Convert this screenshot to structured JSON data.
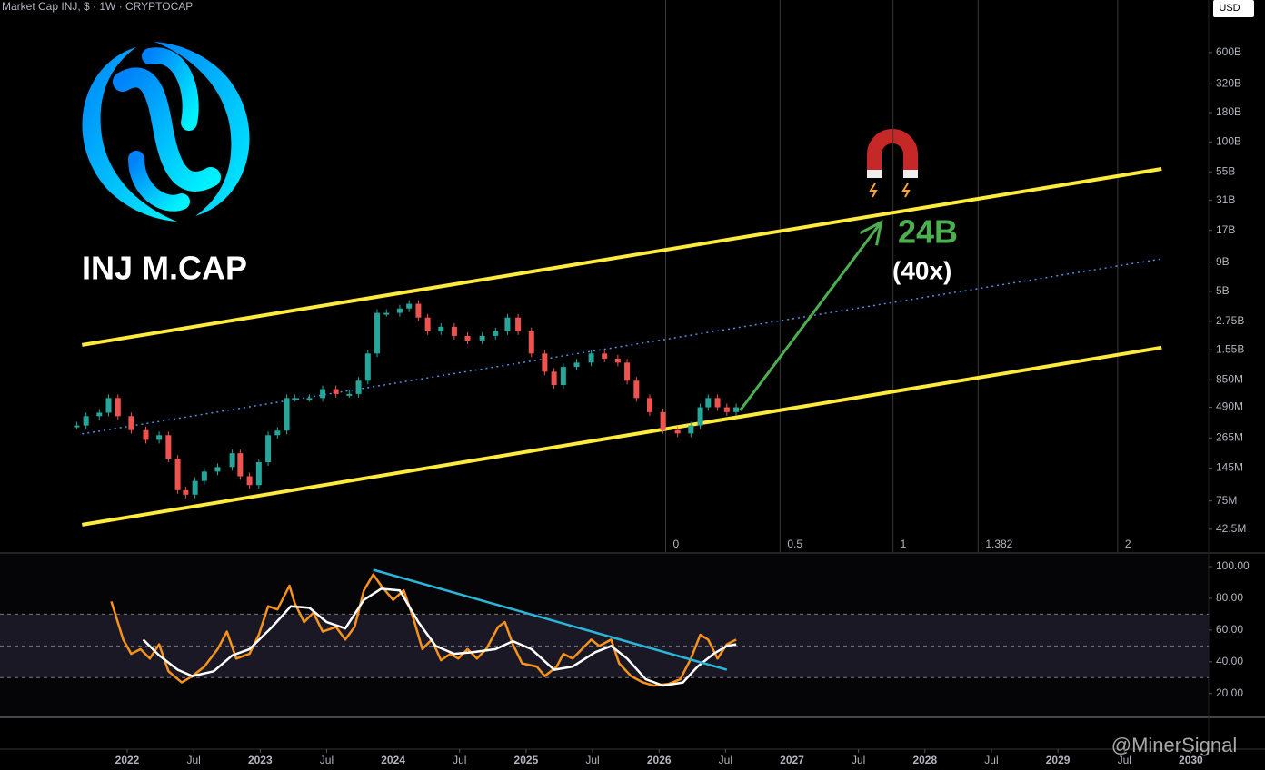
{
  "header": {
    "title": "Market Cap INJ, $ · 1W · CRYPTOCAP",
    "currency": "USD"
  },
  "watermark": "@MinerSignal",
  "chart_data": [
    {
      "type": "candlestick",
      "title": "INJ M.CAP",
      "log_scale": true,
      "colors": {
        "up": "#26a69a",
        "down": "#ef5350"
      },
      "xlim": [
        2021.043,
        2030.134
      ],
      "ylim": [
        26900000,
        1720000000000
      ],
      "yticks": [
        {
          "value": 600000000000,
          "label": "600B"
        },
        {
          "value": 320000000000,
          "label": "320B"
        },
        {
          "value": 180000000000,
          "label": "180B"
        },
        {
          "value": 100000000000,
          "label": "100B"
        },
        {
          "value": 55000000000,
          "label": "55B"
        },
        {
          "value": 31000000000,
          "label": "31B"
        },
        {
          "value": 17000000000,
          "label": "17B"
        },
        {
          "value": 9000000000,
          "label": "9B"
        },
        {
          "value": 5000000000,
          "label": "5B"
        },
        {
          "value": 2750000000,
          "label": "2.75B"
        },
        {
          "value": 1550000000,
          "label": "1.55B"
        },
        {
          "value": 850000000,
          "label": "850M"
        },
        {
          "value": 490000000,
          "label": "490M"
        },
        {
          "value": 265000000,
          "label": "265M"
        },
        {
          "value": 145000000,
          "label": "145M"
        },
        {
          "value": 75000000,
          "label": "75M"
        },
        {
          "value": 42500000,
          "label": "42.5M"
        }
      ],
      "x": [
        2021.62,
        2021.69,
        2021.79,
        2021.86,
        2021.93,
        2022.03,
        2022.14,
        2022.24,
        2022.31,
        2022.38,
        2022.44,
        2022.51,
        2022.58,
        2022.68,
        2022.79,
        2022.85,
        2022.92,
        2022.99,
        2023.06,
        2023.13,
        2023.2,
        2023.26,
        2023.37,
        2023.47,
        2023.57,
        2023.67,
        2023.74,
        2023.81,
        2023.88,
        2023.95,
        2024.05,
        2024.12,
        2024.19,
        2024.26,
        2024.36,
        2024.46,
        2024.56,
        2024.67,
        2024.77,
        2024.86,
        2024.94,
        2025.04,
        2025.14,
        2025.21,
        2025.28,
        2025.38,
        2025.49,
        2025.59,
        2025.69,
        2025.76,
        2025.83,
        2025.93,
        2026.03,
        2026.14,
        2026.24,
        2026.31,
        2026.37,
        2026.44,
        2026.51,
        2026.58
      ],
      "values": [
        340000000,
        410000000,
        440000000,
        590000000,
        410000000,
        310000000,
        255000000,
        280000000,
        175000000,
        93000000,
        85000000,
        112000000,
        135000000,
        148000000,
        195000000,
        123000000,
        103000000,
        163000000,
        280000000,
        307000000,
        590000000,
        590000000,
        590000000,
        705000000,
        640000000,
        640000000,
        835000000,
        1440000000,
        3250000000,
        3250000000,
        3550000000,
        3900000000,
        2960000000,
        2250000000,
        2460000000,
        2050000000,
        1870000000,
        2050000000,
        2250000000,
        2960000000,
        2250000000,
        1440000000,
        1000000000,
        765000000,
        1100000000,
        1200000000,
        1440000000,
        1300000000,
        1200000000,
        835000000,
        590000000,
        445000000,
        310000000,
        290000000,
        340000000,
        490000000,
        590000000,
        490000000,
        445000000,
        490000000
      ],
      "channel": [
        {
          "color": "#ffeb3b",
          "dashed": false,
          "x": [
            2021.66,
            2029.78
          ],
          "values": [
            1710000000,
            58300000000
          ]
        },
        {
          "color": "#4f8fe6",
          "dashed": true,
          "x": [
            2021.66,
            2029.78
          ],
          "values": [
            287000000,
            9600000000
          ]
        },
        {
          "color": "#ffeb3b",
          "dashed": false,
          "x": [
            2021.66,
            2029.78
          ],
          "values": [
            46500000,
            1620000000
          ]
        }
      ],
      "arrow": {
        "color": "#4caf50",
        "x": [
          2026.61,
          2027.67
        ],
        "values": [
          460000000,
          20000000000
        ]
      },
      "annotations": [
        "24B",
        "(40x)"
      ],
      "fib": [
        {
          "level": 0,
          "x": 2026.05
        },
        {
          "level": 0.5,
          "x": 2026.91
        },
        {
          "level": 1,
          "x": 2027.76
        },
        {
          "level": 1.382,
          "x": 2028.4
        },
        {
          "level": 2,
          "x": 2029.45
        }
      ]
    },
    {
      "type": "line",
      "xlim": [
        2021.043,
        2030.134
      ],
      "xticks": [
        2022,
        {
          "value": 2022.5,
          "label": "Jul"
        },
        2023,
        {
          "value": 2023.5,
          "label": "Jul"
        },
        2024,
        {
          "value": 2024.5,
          "label": "Jul"
        },
        2025,
        {
          "value": 2025.5,
          "label": "Jul"
        },
        2026,
        {
          "value": 2026.5,
          "label": "Jul"
        },
        2027,
        {
          "value": 2027.5,
          "label": "Jul"
        },
        2028,
        {
          "value": 2028.5,
          "label": "Jul"
        },
        2029,
        {
          "value": 2029.5,
          "label": "Jul"
        },
        2030
      ],
      "ylim": [
        5,
        108
      ],
      "yticks": [
        {
          "value": 100,
          "label": "100.00"
        },
        {
          "value": 80,
          "label": "80.00"
        },
        {
          "value": 60,
          "label": "60.00"
        },
        {
          "value": 40,
          "label": "40.00"
        },
        {
          "value": 20,
          "label": "20.00"
        }
      ],
      "levels": [
        30,
        50,
        70
      ],
      "series": [
        {
          "color": "#f7931a",
          "x": [
            2021.88,
            2021.97,
            2022.03,
            2022.1,
            2022.17,
            2022.24,
            2022.31,
            2022.41,
            2022.49,
            2022.58,
            2022.68,
            2022.75,
            2022.82,
            2022.92,
            2022.99,
            2023.06,
            2023.13,
            2023.22,
            2023.26,
            2023.33,
            2023.4,
            2023.47,
            2023.57,
            2023.64,
            2023.71,
            2023.78,
            2023.85,
            2023.91,
            2024.0,
            2024.08,
            2024.15,
            2024.22,
            2024.29,
            2024.36,
            2024.43,
            2024.49,
            2024.56,
            2024.63,
            2024.7,
            2024.79,
            2024.84,
            2024.9,
            2024.97,
            2025.08,
            2025.14,
            2025.23,
            2025.28,
            2025.35,
            2025.42,
            2025.49,
            2025.55,
            2025.64,
            2025.7,
            2025.79,
            2025.88,
            2025.96,
            2026.07,
            2026.16,
            2026.24,
            2026.31,
            2026.37,
            2026.44,
            2026.51,
            2026.58
          ],
          "values": [
            78,
            54,
            45,
            48,
            42,
            51,
            34,
            27,
            31,
            37,
            48,
            59,
            42,
            45,
            57,
            75,
            73,
            88,
            77,
            65,
            71,
            59,
            62,
            54,
            62,
            85,
            95,
            88,
            79,
            85,
            68,
            48,
            54,
            41,
            45,
            42,
            48,
            42,
            48,
            62,
            65,
            51,
            39,
            37,
            31,
            37,
            45,
            42,
            48,
            54,
            50,
            54,
            39,
            31,
            27,
            25,
            26,
            29,
            42,
            57,
            54,
            42,
            51,
            54
          ]
        },
        {
          "color": "#ffffff",
          "x": [
            2022.12,
            2022.24,
            2022.38,
            2022.49,
            2022.65,
            2022.79,
            2022.92,
            2023.09,
            2023.23,
            2023.37,
            2023.5,
            2023.64,
            2023.78,
            2023.91,
            2024.05,
            2024.19,
            2024.32,
            2024.46,
            2024.6,
            2024.77,
            2024.9,
            2025.04,
            2025.21,
            2025.35,
            2025.52,
            2025.64,
            2025.76,
            2025.9,
            2026.03,
            2026.18,
            2026.29,
            2026.41,
            2026.51,
            2026.58
          ],
          "values": [
            54,
            44,
            35,
            31,
            34,
            44,
            48,
            62,
            75,
            74,
            65,
            61,
            79,
            86,
            85,
            65,
            50,
            45,
            46,
            48,
            53,
            48,
            35,
            37,
            46,
            50,
            42,
            29,
            25,
            27,
            37,
            45,
            50,
            51
          ]
        }
      ],
      "trendline": {
        "color": "#29b6d9",
        "x": [
          2023.85,
          2026.51
        ],
        "values": [
          98,
          35
        ]
      }
    }
  ]
}
